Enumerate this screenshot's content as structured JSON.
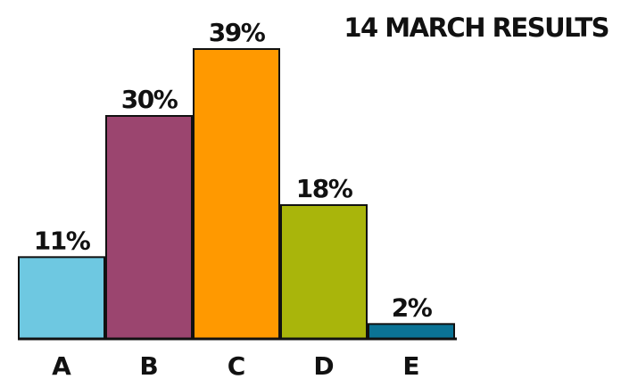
{
  "chart_data": {
    "type": "bar",
    "title": "14 MARCH RESULTS",
    "categories": [
      "A",
      "B",
      "C",
      "D",
      "E"
    ],
    "values": [
      11,
      30,
      39,
      18,
      2
    ],
    "value_labels": [
      "11%",
      "30%",
      "39%",
      "18%",
      "2%"
    ],
    "colors": [
      "#6ec8e1",
      "#9b456f",
      "#ff9900",
      "#a9b50b",
      "#0b7395"
    ],
    "xlabel": "",
    "ylabel": "",
    "ylim": [
      0,
      39
    ],
    "grid": false,
    "legend": "none"
  }
}
